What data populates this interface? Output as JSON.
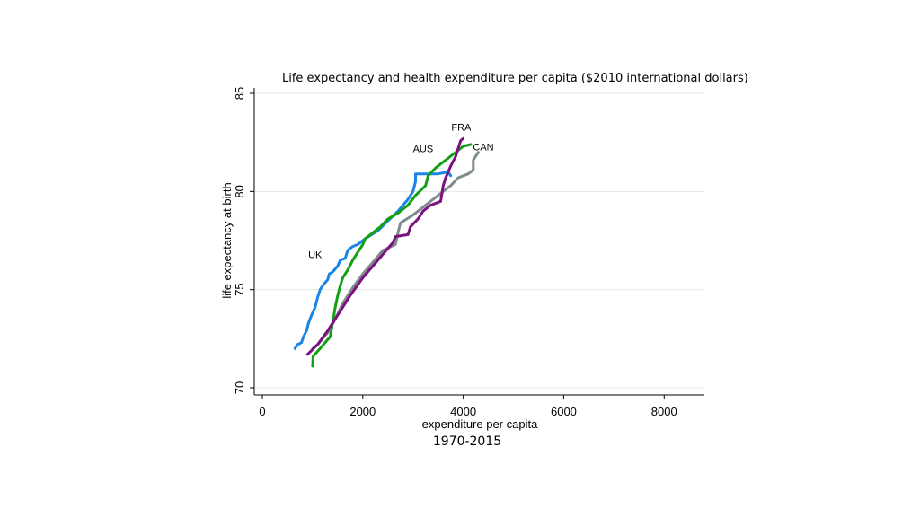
{
  "chart_data": {
    "type": "line",
    "title": "Life expectancy and health expenditure per capita ($2010 international dollars)",
    "caption": "1970-2015",
    "xlabel": "expenditure per capita",
    "ylabel": "life expectancy at birth",
    "xlim": [
      0,
      8800
    ],
    "ylim": [
      70,
      85
    ],
    "xticks": [
      0,
      2000,
      4000,
      6000,
      8000
    ],
    "yticks": [
      70,
      75,
      80,
      85
    ],
    "grid": true,
    "series": [
      {
        "name": "UK",
        "color": "#1a85e6",
        "label": {
          "text": "UK",
          "x": 1050,
          "y": 76.6
        },
        "points": [
          [
            650,
            72.0
          ],
          [
            700,
            72.2
          ],
          [
            780,
            72.3
          ],
          [
            820,
            72.6
          ],
          [
            880,
            72.9
          ],
          [
            920,
            73.3
          ],
          [
            980,
            73.7
          ],
          [
            1050,
            74.1
          ],
          [
            1100,
            74.6
          ],
          [
            1150,
            75.0
          ],
          [
            1200,
            75.2
          ],
          [
            1300,
            75.5
          ],
          [
            1330,
            75.8
          ],
          [
            1400,
            75.9
          ],
          [
            1500,
            76.2
          ],
          [
            1550,
            76.5
          ],
          [
            1650,
            76.6
          ],
          [
            1700,
            77.0
          ],
          [
            1800,
            77.2
          ],
          [
            1900,
            77.3
          ],
          [
            2050,
            77.6
          ],
          [
            2300,
            78.0
          ],
          [
            2500,
            78.5
          ],
          [
            2700,
            79.0
          ],
          [
            2900,
            79.6
          ],
          [
            3000,
            80.0
          ],
          [
            3050,
            80.5
          ],
          [
            3050,
            80.9
          ],
          [
            3250,
            80.9
          ],
          [
            3500,
            80.9
          ],
          [
            3700,
            81.0
          ],
          [
            3750,
            80.8
          ]
        ]
      },
      {
        "name": "AUS",
        "color": "#14a014",
        "label": {
          "text": "AUS",
          "x": 3200,
          "y": 82.0
        },
        "points": [
          [
            1000,
            71.1
          ],
          [
            1010,
            71.6
          ],
          [
            1150,
            72.0
          ],
          [
            1250,
            72.3
          ],
          [
            1350,
            72.6
          ],
          [
            1400,
            73.3
          ],
          [
            1450,
            74.1
          ],
          [
            1500,
            74.7
          ],
          [
            1550,
            75.2
          ],
          [
            1600,
            75.6
          ],
          [
            1700,
            76.0
          ],
          [
            1800,
            76.5
          ],
          [
            1900,
            76.9
          ],
          [
            2000,
            77.3
          ],
          [
            2050,
            77.6
          ],
          [
            2150,
            77.8
          ],
          [
            2350,
            78.2
          ],
          [
            2500,
            78.6
          ],
          [
            2700,
            78.9
          ],
          [
            2900,
            79.3
          ],
          [
            3050,
            79.8
          ],
          [
            3250,
            80.3
          ],
          [
            3300,
            80.8
          ],
          [
            3450,
            81.2
          ],
          [
            3550,
            81.4
          ],
          [
            3700,
            81.7
          ],
          [
            3850,
            82.0
          ],
          [
            4000,
            82.3
          ],
          [
            4150,
            82.4
          ]
        ]
      },
      {
        "name": "CAN",
        "color": "#7f8c8d",
        "label": {
          "text": "CAN",
          "x": 4400,
          "y": 82.1
        },
        "points": [
          [
            1000,
            72.0
          ],
          [
            1100,
            72.2
          ],
          [
            1300,
            72.8
          ],
          [
            1450,
            73.5
          ],
          [
            1600,
            74.3
          ],
          [
            1800,
            75.1
          ],
          [
            2000,
            75.8
          ],
          [
            2200,
            76.4
          ],
          [
            2400,
            77.0
          ],
          [
            2650,
            77.3
          ],
          [
            2700,
            77.9
          ],
          [
            2750,
            78.4
          ],
          [
            3000,
            78.8
          ],
          [
            3200,
            79.2
          ],
          [
            3400,
            79.6
          ],
          [
            3550,
            79.9
          ],
          [
            3750,
            80.3
          ],
          [
            3900,
            80.7
          ],
          [
            4100,
            80.9
          ],
          [
            4200,
            81.1
          ],
          [
            4200,
            81.6
          ],
          [
            4300,
            82.0
          ]
        ]
      },
      {
        "name": "FRA",
        "color": "#7b1280",
        "label": {
          "text": "FRA",
          "x": 3960,
          "y": 83.1
        },
        "points": [
          [
            900,
            71.7
          ],
          [
            1100,
            72.2
          ],
          [
            1300,
            72.9
          ],
          [
            1550,
            73.9
          ],
          [
            1750,
            74.7
          ],
          [
            2000,
            75.6
          ],
          [
            2300,
            76.5
          ],
          [
            2600,
            77.4
          ],
          [
            2650,
            77.7
          ],
          [
            2900,
            77.8
          ],
          [
            2950,
            78.2
          ],
          [
            3100,
            78.6
          ],
          [
            3200,
            79.0
          ],
          [
            3350,
            79.3
          ],
          [
            3550,
            79.5
          ],
          [
            3600,
            80.3
          ],
          [
            3650,
            80.7
          ],
          [
            3750,
            81.3
          ],
          [
            3850,
            81.8
          ],
          [
            3900,
            82.2
          ],
          [
            3950,
            82.6
          ],
          [
            4000,
            82.7
          ]
        ]
      }
    ]
  }
}
